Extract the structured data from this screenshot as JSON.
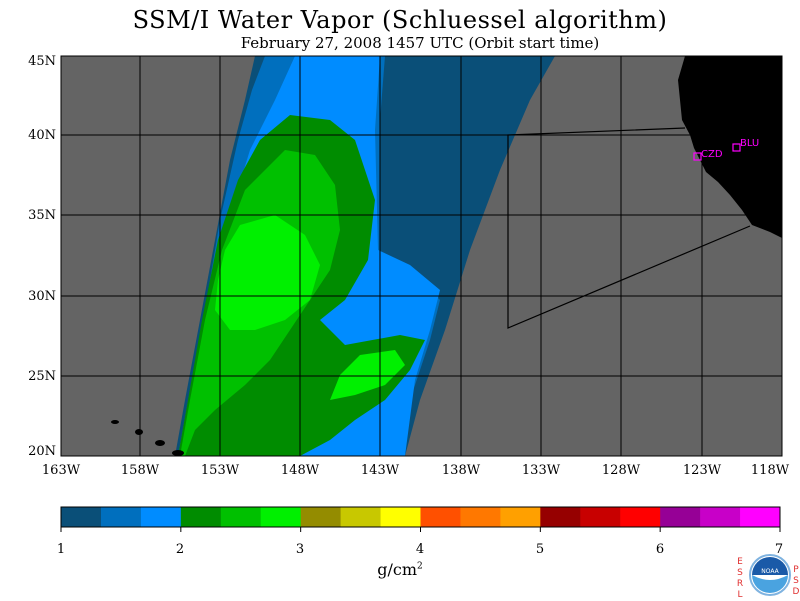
{
  "title": "SSM/I Water Vapor (Schluessel algorithm)",
  "subtitle": "February 27, 2008  1457 UTC  (Orbit start time)",
  "lat_labels": [
    "45N",
    "40N",
    "35N",
    "30N",
    "25N",
    "20N"
  ],
  "lon_labels": [
    "163W",
    "158W",
    "153W",
    "148W",
    "143W",
    "138W",
    "133W",
    "128W",
    "123W",
    "118W"
  ],
  "colorbar": {
    "ticks": [
      "1",
      "2",
      "3",
      "4",
      "5",
      "6",
      "7"
    ],
    "units": "g/cm",
    "units_exp": "2",
    "colors": [
      "#0a4f78",
      "#006fbe",
      "#008cff",
      "#008c00",
      "#00c000",
      "#00f000",
      "#948c00",
      "#c8c800",
      "#ffff00",
      "#ff5000",
      "#ff7800",
      "#ffa000",
      "#960000",
      "#c80000",
      "#ff0000",
      "#960096",
      "#c800c8",
      "#ff00ff"
    ]
  },
  "stations": [
    {
      "label": "CZD",
      "lat": 38.6,
      "lon": -123.2
    },
    {
      "label": "BLU",
      "lat": 39.3,
      "lon": -120.9
    }
  ],
  "logo": {
    "left": "ESRL",
    "right": "PSD",
    "center": "NOAA"
  },
  "colors": {
    "land": "#000000",
    "ocean_nodata": "#646464",
    "grid": "#000000"
  }
}
